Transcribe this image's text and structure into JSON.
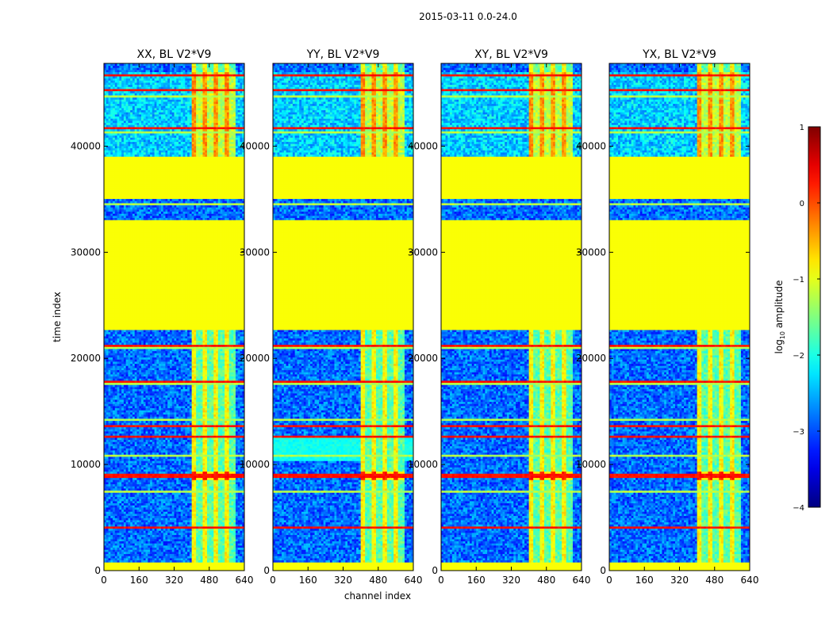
{
  "suptitle": "2015-03-11 0.0-24.0",
  "chart_data": {
    "type": "heatmap",
    "panels": [
      {
        "title": "XX, BL V2*V9",
        "pol": "XX"
      },
      {
        "title": "YY, BL V2*V9",
        "pol": "YY"
      },
      {
        "title": "XY, BL V2*V9",
        "pol": "XY"
      },
      {
        "title": "YX, BL V2*V9",
        "pol": "YX"
      }
    ],
    "xlabel": "channel index",
    "ylabel": "time index",
    "xlim": [
      0,
      640
    ],
    "ylim": [
      0,
      47800
    ],
    "xticks": [
      0,
      160,
      320,
      480,
      640
    ],
    "yticks": [
      0,
      10000,
      20000,
      30000,
      40000
    ],
    "colorbar": {
      "label": "log10 amplitude",
      "label_main": "log",
      "label_sub": "10",
      "label_rest": " amplitude",
      "range": [
        -4,
        1
      ],
      "ticks": [
        1,
        0,
        -1,
        -2,
        -3,
        -4
      ],
      "tick_labels": [
        "1",
        "0",
        "−1",
        "−2",
        "−3",
        "−4"
      ],
      "colormap": "jet"
    },
    "flagged_time_ranges": [
      [
        22800,
        33100
      ],
      [
        35000,
        39000
      ]
    ],
    "flag_value": -0.9,
    "rfi_channel_range": [
      400,
      600
    ],
    "bright_time_rows": [
      4000,
      8800,
      9100,
      12700,
      13600,
      17800,
      21200,
      41800,
      45300,
      46700
    ]
  }
}
